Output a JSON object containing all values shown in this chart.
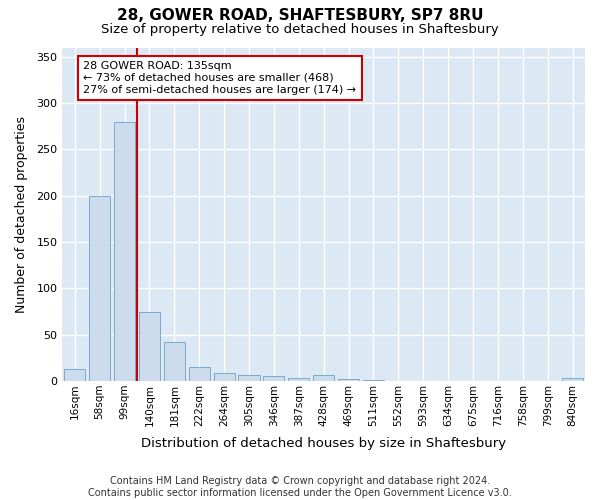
{
  "title": "28, GOWER ROAD, SHAFTESBURY, SP7 8RU",
  "subtitle": "Size of property relative to detached houses in Shaftesbury",
  "xlabel": "Distribution of detached houses by size in Shaftesbury",
  "ylabel": "Number of detached properties",
  "bar_color": "#ccdcec",
  "bar_edge_color": "#7aabcc",
  "plot_bg_color": "#dce8f4",
  "fig_bg_color": "#ffffff",
  "grid_color": "#ffffff",
  "categories": [
    "16sqm",
    "58sqm",
    "99sqm",
    "140sqm",
    "181sqm",
    "222sqm",
    "264sqm",
    "305sqm",
    "346sqm",
    "387sqm",
    "428sqm",
    "469sqm",
    "511sqm",
    "552sqm",
    "593sqm",
    "634sqm",
    "675sqm",
    "716sqm",
    "758sqm",
    "799sqm",
    "840sqm"
  ],
  "values": [
    13,
    200,
    280,
    75,
    42,
    15,
    9,
    6,
    5,
    3,
    6,
    2,
    1,
    0,
    0,
    0,
    0,
    0,
    0,
    0,
    3
  ],
  "ylim": [
    0,
    360
  ],
  "yticks": [
    0,
    50,
    100,
    150,
    200,
    250,
    300,
    350
  ],
  "property_line_x": 3,
  "property_line_color": "#cc0000",
  "annotation_text": "28 GOWER ROAD: 135sqm\n← 73% of detached houses are smaller (468)\n27% of semi-detached houses are larger (174) →",
  "annotation_box_color": "#ffffff",
  "annotation_edge_color": "#cc0000",
  "footer_text": "Contains HM Land Registry data © Crown copyright and database right 2024.\nContains public sector information licensed under the Open Government Licence v3.0.",
  "fig_width": 6.0,
  "fig_height": 5.0
}
